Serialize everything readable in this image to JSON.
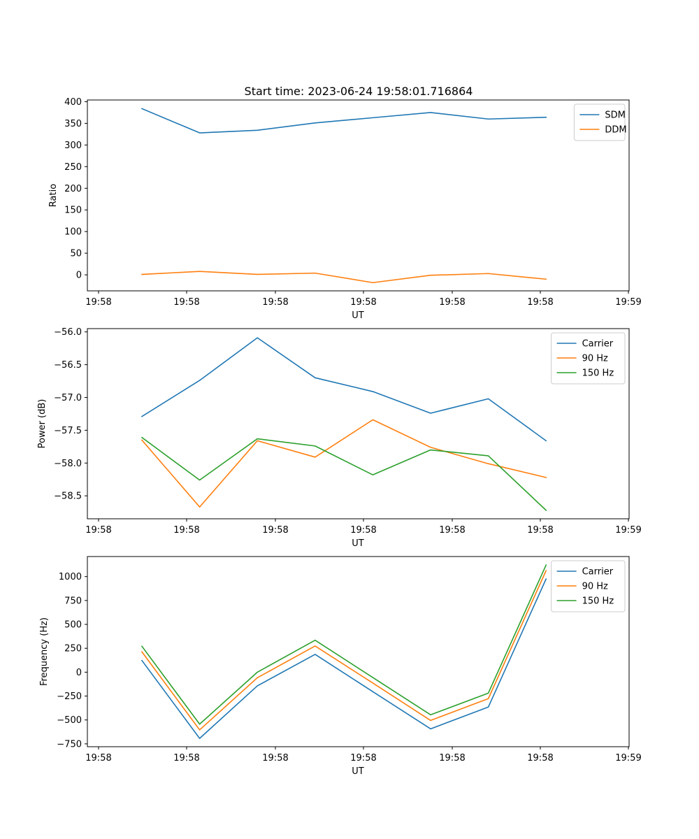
{
  "figure_title": "Start time: 2023-06-24 19:58:01.716864",
  "colors": {
    "blue": "#1f77b4",
    "orange": "#ff7f0e",
    "green": "#2ca02c"
  },
  "chart_data": [
    {
      "type": "line",
      "xlabel": "UT",
      "ylabel": "Ratio",
      "x_tick_labels": [
        "19:58",
        "19:58",
        "19:58",
        "19:58",
        "19:58",
        "19:58",
        "19:59"
      ],
      "y_ticks": [
        0,
        50,
        100,
        150,
        200,
        250,
        300,
        350,
        400
      ],
      "y_tick_labels": [
        "0",
        "50",
        "100",
        "150",
        "200",
        "250",
        "300",
        "350",
        "400"
      ],
      "ylim": [
        -37,
        404
      ],
      "legend": "top-right",
      "x": [
        0,
        1,
        2,
        3,
        4,
        5,
        6,
        7
      ],
      "series": [
        {
          "name": "SDM",
          "color": "#1f77b4",
          "values": [
            384,
            328,
            334,
            351,
            363,
            375,
            360,
            364
          ]
        },
        {
          "name": "DDM",
          "color": "#ff7f0e",
          "values": [
            1,
            8,
            1,
            4,
            -18,
            -1,
            3,
            -10
          ]
        }
      ]
    },
    {
      "type": "line",
      "xlabel": "UT",
      "ylabel": "Power (dB)",
      "x_tick_labels": [
        "19:58",
        "19:58",
        "19:58",
        "19:58",
        "19:58",
        "19:58",
        "19:59"
      ],
      "y_ticks": [
        -58.5,
        -58.0,
        -57.5,
        -57.0,
        -56.5,
        -56.0
      ],
      "y_tick_labels": [
        "−58.5",
        "−58.0",
        "−57.5",
        "−57.0",
        "−56.5",
        "−56.0"
      ],
      "ylim": [
        -58.85,
        -55.95
      ],
      "legend": "top-right",
      "x": [
        0,
        1,
        2,
        3,
        4,
        5,
        6,
        7
      ],
      "series": [
        {
          "name": "Carrier",
          "color": "#1f77b4",
          "values": [
            -57.29,
            -56.74,
            -56.09,
            -56.7,
            -56.91,
            -57.24,
            -57.02,
            -57.66
          ]
        },
        {
          "name": "90 Hz",
          "color": "#ff7f0e",
          "values": [
            -57.65,
            -58.67,
            -57.66,
            -57.91,
            -57.34,
            -57.76,
            -58.01,
            -58.22
          ]
        },
        {
          "name": "150 Hz",
          "color": "#2ca02c",
          "values": [
            -57.61,
            -58.26,
            -57.63,
            -57.74,
            -58.18,
            -57.8,
            -57.89,
            -58.72
          ]
        }
      ]
    },
    {
      "type": "line",
      "xlabel": "UT",
      "ylabel": "Frequency (Hz)",
      "x_tick_labels": [
        "19:58",
        "19:58",
        "19:58",
        "19:58",
        "19:58",
        "19:58",
        "19:59"
      ],
      "y_ticks": [
        -750,
        -500,
        -250,
        0,
        250,
        500,
        750,
        1000
      ],
      "y_tick_labels": [
        "−750",
        "−500",
        "−250",
        "0",
        "250",
        "500",
        "750",
        "1000"
      ],
      "ylim": [
        -780,
        1210
      ],
      "legend": "top-right",
      "x": [
        0,
        1,
        2,
        3,
        4,
        5,
        6,
        7
      ],
      "series": [
        {
          "name": "Carrier",
          "color": "#1f77b4",
          "values": [
            122,
            -693,
            -143,
            186,
            -204,
            -593,
            -365,
            975
          ]
        },
        {
          "name": "90 Hz",
          "color": "#ff7f0e",
          "values": [
            213,
            -604,
            -58,
            274,
            -114,
            -505,
            -277,
            1062
          ]
        },
        {
          "name": "150 Hz",
          "color": "#2ca02c",
          "values": [
            271,
            -544,
            0,
            334,
            -56,
            -446,
            -219,
            1121
          ]
        }
      ]
    }
  ]
}
